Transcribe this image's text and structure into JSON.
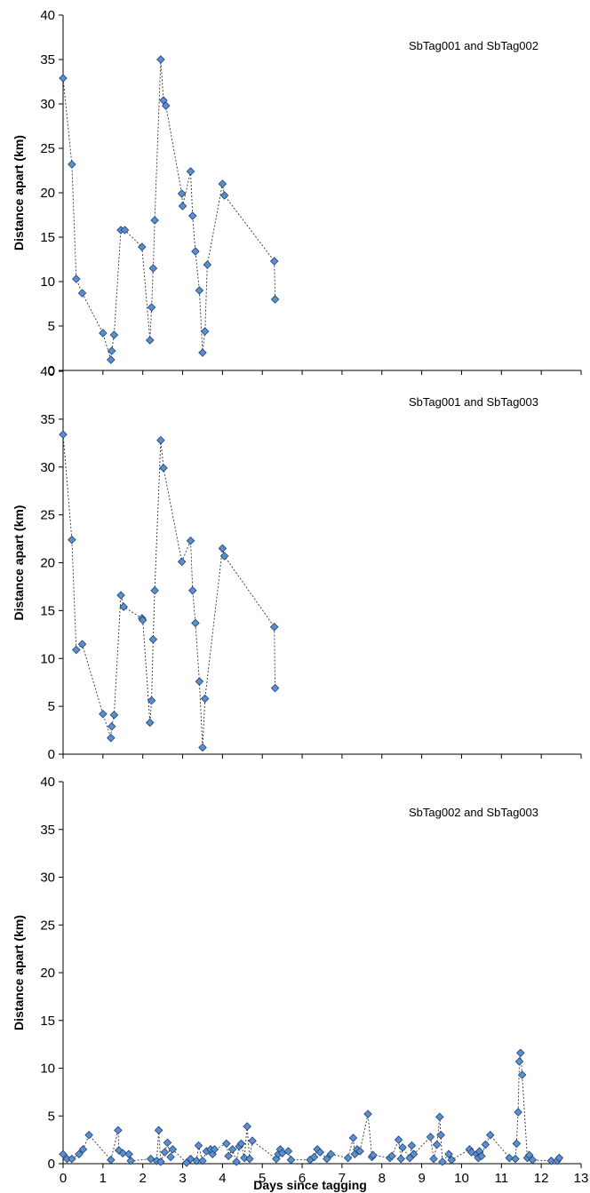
{
  "figure": {
    "xlabel": "Days since tagging"
  },
  "chart_data": [
    {
      "type": "scatter",
      "title": "SbTag001 and SbTag002",
      "ylabel": "Distance apart (km)",
      "xlim": [
        0,
        13
      ],
      "ylim": [
        0,
        40
      ],
      "x_ticks": [
        0,
        1,
        2,
        3,
        4,
        5,
        6,
        7,
        8,
        9,
        10,
        11,
        12,
        13
      ],
      "y_ticks": [
        0,
        5,
        10,
        15,
        20,
        25,
        30,
        35,
        40
      ],
      "marker_color": "#5b8fd0",
      "marker_edge": "#1f3f6e",
      "line_style": "dotted",
      "show_x_tick_labels": false,
      "points": [
        [
          0.0,
          32.9
        ],
        [
          0.22,
          23.2
        ],
        [
          0.33,
          10.3
        ],
        [
          0.48,
          8.7
        ],
        [
          1.0,
          4.2
        ],
        [
          1.2,
          1.2
        ],
        [
          1.22,
          2.2
        ],
        [
          1.28,
          4.0
        ],
        [
          1.45,
          15.8
        ],
        [
          1.55,
          15.8
        ],
        [
          1.98,
          13.9
        ],
        [
          2.18,
          3.4
        ],
        [
          2.22,
          7.1
        ],
        [
          2.26,
          11.5
        ],
        [
          2.3,
          16.9
        ],
        [
          2.45,
          35.0
        ],
        [
          2.52,
          30.4
        ],
        [
          2.58,
          29.8
        ],
        [
          2.98,
          19.9
        ],
        [
          3.0,
          18.5
        ],
        [
          3.2,
          22.4
        ],
        [
          3.25,
          17.4
        ],
        [
          3.32,
          13.4
        ],
        [
          3.42,
          9.0
        ],
        [
          3.5,
          2.0
        ],
        [
          3.56,
          4.4
        ],
        [
          3.62,
          11.9
        ],
        [
          4.0,
          21.0
        ],
        [
          4.05,
          19.7
        ],
        [
          5.3,
          12.3
        ],
        [
          5.32,
          8.0
        ]
      ]
    },
    {
      "type": "scatter",
      "title": "SbTag001 and SbTag003",
      "ylabel": "Distance apart (km)",
      "xlim": [
        0,
        13
      ],
      "ylim": [
        0,
        40
      ],
      "x_ticks": [
        0,
        1,
        2,
        3,
        4,
        5,
        6,
        7,
        8,
        9,
        10,
        11,
        12,
        13
      ],
      "y_ticks": [
        0,
        5,
        10,
        15,
        20,
        25,
        30,
        35,
        40
      ],
      "marker_color": "#5b8fd0",
      "marker_edge": "#1f3f6e",
      "line_style": "dotted",
      "show_x_tick_labels": false,
      "points": [
        [
          0.0,
          33.4
        ],
        [
          0.22,
          22.4
        ],
        [
          0.33,
          10.9
        ],
        [
          0.48,
          11.5
        ],
        [
          1.0,
          4.2
        ],
        [
          1.2,
          1.7
        ],
        [
          1.22,
          2.9
        ],
        [
          1.28,
          4.1
        ],
        [
          1.45,
          16.6
        ],
        [
          1.52,
          15.4
        ],
        [
          1.98,
          14.2
        ],
        [
          2.0,
          14.0
        ],
        [
          2.18,
          3.3
        ],
        [
          2.22,
          5.6
        ],
        [
          2.26,
          12.0
        ],
        [
          2.3,
          17.1
        ],
        [
          2.45,
          32.8
        ],
        [
          2.52,
          29.9
        ],
        [
          2.98,
          20.1
        ],
        [
          3.2,
          22.3
        ],
        [
          3.25,
          17.1
        ],
        [
          3.32,
          13.7
        ],
        [
          3.42,
          7.6
        ],
        [
          3.5,
          0.7
        ],
        [
          3.56,
          5.8
        ],
        [
          4.0,
          21.5
        ],
        [
          4.05,
          20.7
        ],
        [
          5.3,
          13.3
        ],
        [
          5.32,
          6.9
        ]
      ]
    },
    {
      "type": "scatter",
      "title": "SbTag002 and SbTag003",
      "ylabel": "Distance apart (km)",
      "xlabel": "Days since tagging",
      "xlim": [
        0,
        13
      ],
      "ylim": [
        0,
        40
      ],
      "x_ticks": [
        0,
        1,
        2,
        3,
        4,
        5,
        6,
        7,
        8,
        9,
        10,
        11,
        12,
        13
      ],
      "y_ticks": [
        0,
        5,
        10,
        15,
        20,
        25,
        30,
        35,
        40
      ],
      "marker_color": "#5b8fd0",
      "marker_edge": "#1f3f6e",
      "line_style": "dotted",
      "show_x_tick_labels": true,
      "points": [
        [
          0.0,
          1.0
        ],
        [
          0.1,
          0.5
        ],
        [
          0.22,
          0.5
        ],
        [
          0.4,
          1.0
        ],
        [
          0.5,
          1.5
        ],
        [
          0.65,
          3.0
        ],
        [
          1.2,
          0.4
        ],
        [
          1.38,
          3.5
        ],
        [
          1.4,
          1.4
        ],
        [
          1.5,
          1.1
        ],
        [
          1.65,
          1.0
        ],
        [
          1.7,
          0.3
        ],
        [
          2.2,
          0.5
        ],
        [
          2.35,
          0.3
        ],
        [
          2.4,
          3.5
        ],
        [
          2.45,
          0.2
        ],
        [
          2.55,
          1.2
        ],
        [
          2.62,
          2.2
        ],
        [
          2.7,
          0.7
        ],
        [
          2.75,
          1.5
        ],
        [
          3.1,
          0.1
        ],
        [
          3.2,
          0.5
        ],
        [
          3.35,
          0.3
        ],
        [
          3.4,
          1.9
        ],
        [
          3.5,
          0.3
        ],
        [
          3.6,
          1.3
        ],
        [
          3.7,
          1.5
        ],
        [
          3.75,
          1.0
        ],
        [
          3.8,
          1.5
        ],
        [
          4.1,
          2.1
        ],
        [
          4.15,
          0.8
        ],
        [
          4.25,
          1.5
        ],
        [
          4.35,
          0.2
        ],
        [
          4.42,
          1.8
        ],
        [
          4.47,
          2.1
        ],
        [
          4.55,
          0.6
        ],
        [
          4.62,
          3.9
        ],
        [
          4.68,
          0.5
        ],
        [
          4.75,
          2.4
        ],
        [
          5.35,
          0.5
        ],
        [
          5.4,
          1.0
        ],
        [
          5.45,
          1.5
        ],
        [
          5.5,
          1.1
        ],
        [
          5.65,
          1.3
        ],
        [
          5.72,
          0.4
        ],
        [
          6.2,
          0.4
        ],
        [
          6.3,
          0.7
        ],
        [
          6.38,
          1.5
        ],
        [
          6.45,
          1.2
        ],
        [
          6.62,
          0.5
        ],
        [
          6.72,
          1.0
        ],
        [
          7.15,
          0.6
        ],
        [
          7.28,
          2.7
        ],
        [
          7.32,
          1.0
        ],
        [
          7.38,
          1.5
        ],
        [
          7.45,
          1.3
        ],
        [
          7.65,
          5.2
        ],
        [
          7.75,
          0.7
        ],
        [
          7.78,
          0.9
        ],
        [
          8.2,
          0.6
        ],
        [
          8.25,
          0.8
        ],
        [
          8.42,
          2.5
        ],
        [
          8.48,
          0.5
        ],
        [
          8.52,
          1.7
        ],
        [
          8.7,
          0.6
        ],
        [
          8.75,
          1.9
        ],
        [
          8.8,
          1.0
        ],
        [
          9.22,
          2.8
        ],
        [
          9.3,
          0.5
        ],
        [
          9.38,
          2.0
        ],
        [
          9.45,
          4.9
        ],
        [
          9.48,
          3.0
        ],
        [
          9.52,
          0.2
        ],
        [
          9.68,
          1.0
        ],
        [
          9.75,
          0.4
        ],
        [
          10.2,
          1.5
        ],
        [
          10.25,
          1.2
        ],
        [
          10.38,
          1.0
        ],
        [
          10.42,
          0.6
        ],
        [
          10.45,
          1.3
        ],
        [
          10.5,
          0.8
        ],
        [
          10.6,
          2.0
        ],
        [
          10.72,
          3.0
        ],
        [
          11.2,
          0.6
        ],
        [
          11.35,
          0.5
        ],
        [
          11.38,
          2.1
        ],
        [
          11.42,
          5.4
        ],
        [
          11.45,
          10.7
        ],
        [
          11.48,
          11.6
        ],
        [
          11.52,
          9.3
        ],
        [
          11.65,
          0.6
        ],
        [
          11.7,
          0.9
        ],
        [
          11.78,
          0.4
        ],
        [
          12.25,
          0.3
        ],
        [
          12.4,
          0.3
        ],
        [
          12.45,
          0.6
        ]
      ]
    }
  ]
}
